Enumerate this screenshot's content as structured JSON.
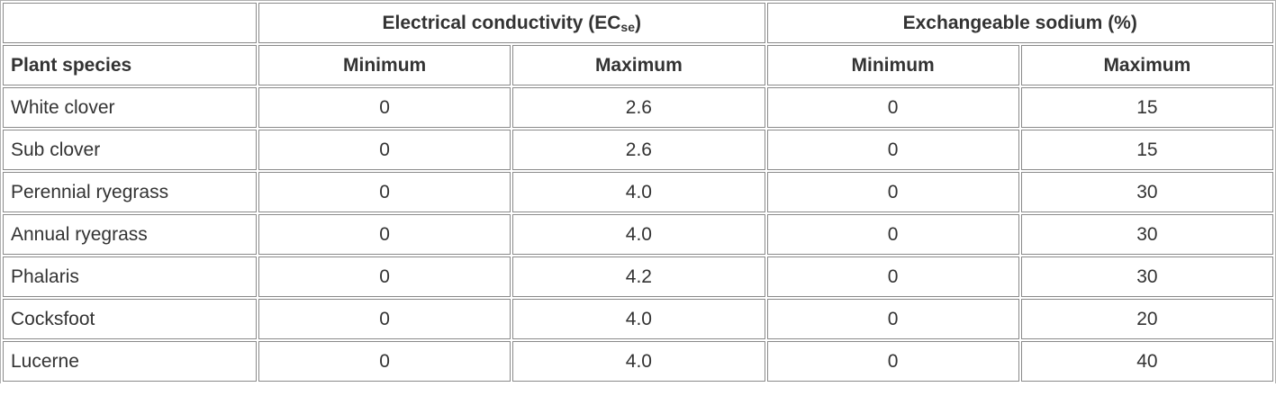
{
  "table": {
    "group_headers": [
      {
        "text": "Electrical conductivity (EC",
        "sub": "se",
        "after": ")"
      },
      {
        "text": "Exchangeable sodium (%)"
      }
    ],
    "headers": [
      "Plant species",
      "Minimum",
      "Maximum",
      "Minimum",
      "Maximum"
    ],
    "rows": [
      [
        "White clover",
        "0",
        "2.6",
        "0",
        "15"
      ],
      [
        "Sub clover",
        "0",
        "2.6",
        "0",
        "15"
      ],
      [
        "Perennial ryegrass",
        "0",
        "4.0",
        "0",
        "30"
      ],
      [
        "Annual ryegrass",
        "0",
        "4.0",
        "0",
        "30"
      ],
      [
        "Phalaris",
        "0",
        "4.2",
        "0",
        "30"
      ],
      [
        "Cocksfoot",
        "0",
        "4.0",
        "0",
        "20"
      ],
      [
        "Lucerne",
        "0",
        "4.0",
        "0",
        "40"
      ]
    ]
  }
}
